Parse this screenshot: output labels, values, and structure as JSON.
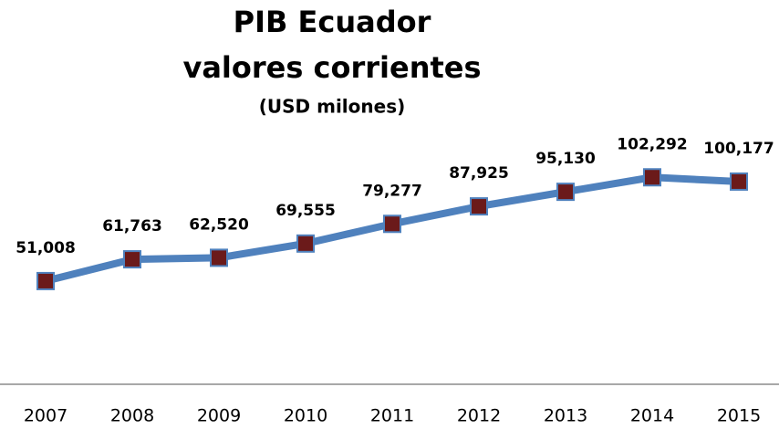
{
  "chart_data": {
    "type": "line",
    "title": "PIB Ecuador",
    "subtitle": "valores corrientes",
    "units": "(USD milones)",
    "categories": [
      "2007",
      "2008",
      "2009",
      "2010",
      "2011",
      "2012",
      "2013",
      "2014",
      "2015"
    ],
    "values": [
      51008,
      61763,
      62520,
      69555,
      79277,
      87925,
      95130,
      102292,
      100177
    ],
    "value_labels": [
      "51,008",
      "61,763",
      "62,520",
      "69,555",
      "79,277",
      "87,925",
      "95,130",
      "102,292",
      "100,177"
    ],
    "color": "#4f81bd",
    "marker_color": "#6b1a1a",
    "ylim": [
      0,
      120000
    ]
  }
}
